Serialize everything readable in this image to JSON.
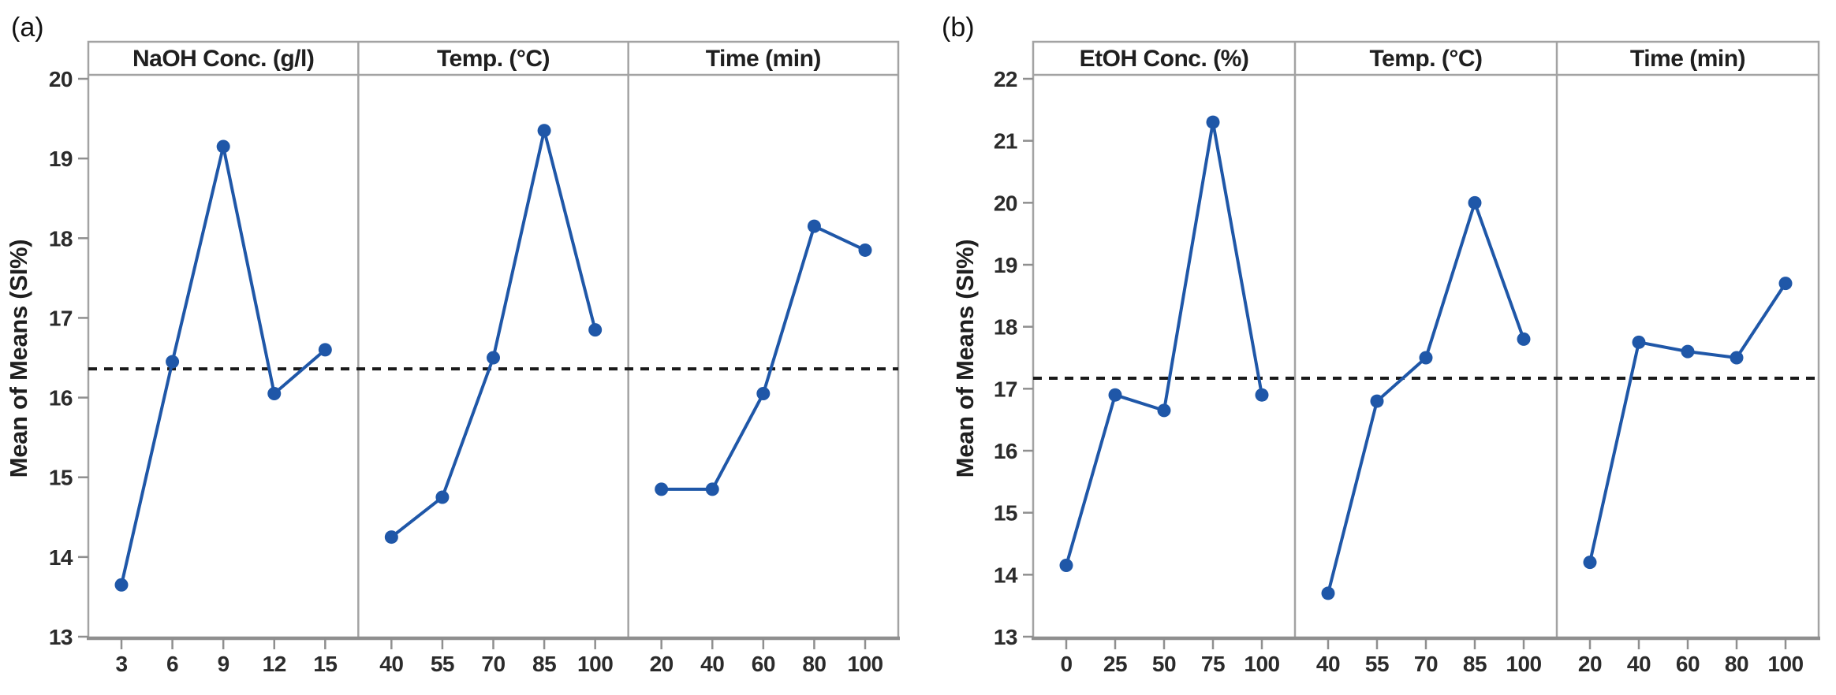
{
  "figure": {
    "background": "#ffffff",
    "description": "Two Minitab-style main effects plots, side by side, each with three factor panels sharing one y axis"
  },
  "chart_data": [
    {
      "type": "line",
      "label": "(a)",
      "ylabel": "Mean of Means (SI%)",
      "ylim": [
        13,
        20
      ],
      "yticks": [
        13,
        14,
        15,
        16,
        17,
        18,
        19,
        20
      ],
      "reference_line": 16.36,
      "reference_line_style": "dashed",
      "grid": false,
      "legend": false,
      "marker": "circle",
      "line_color": "#1f57a8",
      "panels": [
        {
          "title": "NaOH Conc. (g/l)",
          "categories": [
            "3",
            "6",
            "9",
            "12",
            "15"
          ],
          "values": [
            13.65,
            16.45,
            19.15,
            16.05,
            16.6
          ]
        },
        {
          "title": "Temp. (°C)",
          "categories": [
            "40",
            "55",
            "70",
            "85",
            "100"
          ],
          "values": [
            14.25,
            14.75,
            16.5,
            19.35,
            16.85
          ]
        },
        {
          "title": "Time (min)",
          "categories": [
            "20",
            "40",
            "60",
            "80",
            "100"
          ],
          "values": [
            14.85,
            14.85,
            16.05,
            18.15,
            17.85
          ]
        }
      ]
    },
    {
      "type": "line",
      "label": "(b)",
      "ylabel": "Mean of Means (SI%)",
      "ylim": [
        13,
        22
      ],
      "yticks": [
        13,
        14,
        15,
        16,
        17,
        18,
        19,
        20,
        21,
        22
      ],
      "reference_line": 17.17,
      "reference_line_style": "dashed",
      "grid": false,
      "legend": false,
      "marker": "circle",
      "line_color": "#1f57a8",
      "panels": [
        {
          "title": "EtOH Conc. (%)",
          "categories": [
            "0",
            "25",
            "50",
            "75",
            "100"
          ],
          "values": [
            14.15,
            16.9,
            16.65,
            21.3,
            16.9
          ]
        },
        {
          "title": "Temp. (°C)",
          "categories": [
            "40",
            "55",
            "70",
            "85",
            "100"
          ],
          "values": [
            13.7,
            16.8,
            17.5,
            20.0,
            17.8
          ]
        },
        {
          "title": "Time (min)",
          "categories": [
            "20",
            "40",
            "60",
            "80",
            "100"
          ],
          "values": [
            14.2,
            17.75,
            17.6,
            17.5,
            18.7
          ]
        }
      ]
    }
  ],
  "colors": {
    "series_line": "#1f57a8",
    "marker_fill": "#1f57a8",
    "frame_gray": "#a3a3a3",
    "axis_gray": "#8f8f8f",
    "reference_black": "#1a1a1a",
    "text_dark": "#1f1f1f"
  }
}
